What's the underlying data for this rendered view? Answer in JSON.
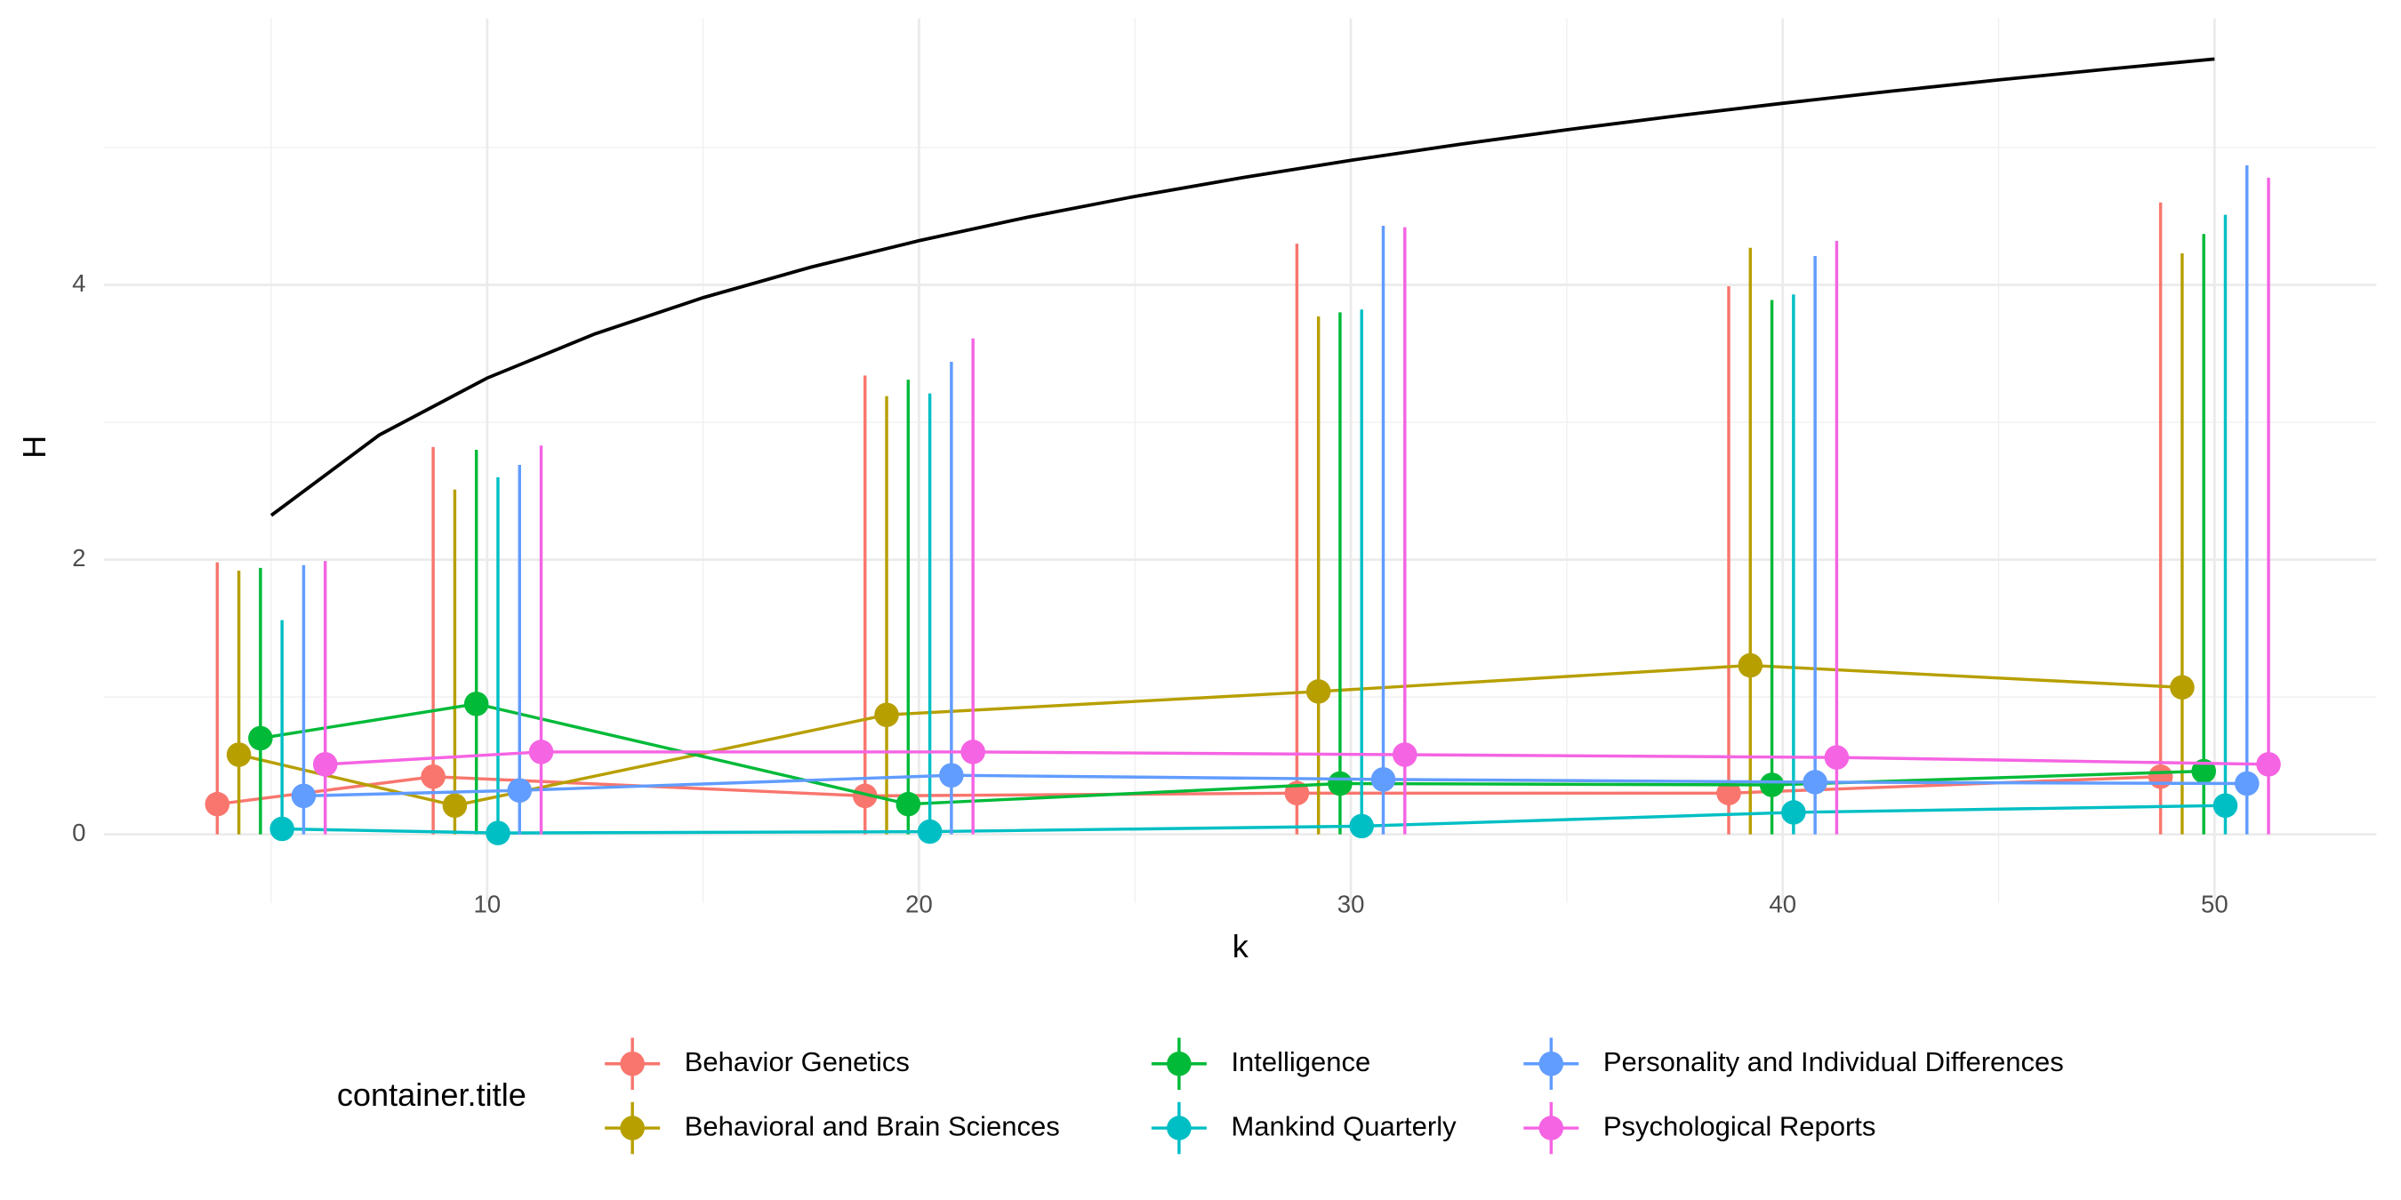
{
  "chart_data": {
    "type": "line",
    "x_label": "k",
    "y_label": "H",
    "legend_title": "container.title",
    "x": [
      5,
      10,
      20,
      30,
      40,
      50
    ],
    "xlim": [
      1.13,
      53.75
    ],
    "ylim": [
      -0.5,
      5.94
    ],
    "xticks": [
      10,
      20,
      30,
      40,
      50
    ],
    "yticks": [
      0,
      2,
      4
    ],
    "xminor": [
      5,
      15,
      25,
      35,
      45
    ],
    "yminor": [
      1,
      3,
      5
    ],
    "grid": true,
    "legend": "bottom",
    "series": [
      {
        "name": "Behavior Genetics",
        "color": "#F8766D",
        "values": [
          0.22,
          0.42,
          0.28,
          0.3,
          0.3,
          0.42
        ],
        "ymin": [
          0,
          0,
          0,
          0,
          0,
          0
        ],
        "ymax": [
          1.98,
          2.82,
          3.34,
          4.3,
          3.99,
          4.6
        ]
      },
      {
        "name": "Behavioral and Brain Sciences",
        "color": "#B79F00",
        "values": [
          0.58,
          0.21,
          0.87,
          1.04,
          1.23,
          1.07
        ],
        "ymin": [
          0,
          0,
          0,
          0,
          0,
          0
        ],
        "ymax": [
          1.92,
          2.51,
          3.19,
          3.77,
          4.27,
          4.23
        ]
      },
      {
        "name": "Intelligence",
        "color": "#00BA38",
        "values": [
          0.7,
          0.95,
          0.22,
          0.37,
          0.36,
          0.46
        ],
        "ymin": [
          0,
          0,
          0,
          0,
          0,
          0
        ],
        "ymax": [
          1.94,
          2.8,
          3.31,
          3.8,
          3.89,
          4.37
        ]
      },
      {
        "name": "Mankind Quarterly",
        "color": "#00BFC4",
        "values": [
          0.04,
          0.01,
          0.02,
          0.06,
          0.16,
          0.21
        ],
        "ymin": [
          0,
          0,
          0,
          0,
          0,
          0
        ],
        "ymax": [
          1.56,
          2.6,
          3.21,
          3.82,
          3.93,
          4.51
        ]
      },
      {
        "name": "Personality and Individual Differences",
        "color": "#619CFF",
        "values": [
          0.28,
          0.32,
          0.43,
          0.4,
          0.38,
          0.37
        ],
        "ymin": [
          0,
          0,
          0,
          0,
          0,
          0
        ],
        "ymax": [
          1.96,
          2.69,
          3.44,
          4.43,
          4.21,
          4.87
        ]
      },
      {
        "name": "Psychological Reports",
        "color": "#F564E3",
        "values": [
          0.51,
          0.6,
          0.6,
          0.58,
          0.56,
          0.51
        ],
        "ymin": [
          0,
          0,
          0,
          0,
          0,
          0
        ],
        "ymax": [
          1.99,
          2.83,
          3.61,
          4.42,
          4.32,
          4.78
        ]
      }
    ],
    "curve": {
      "color": "#000000",
      "x": [
        5,
        7.5,
        10,
        12.5,
        15,
        17.5,
        20,
        22.5,
        25,
        27.5,
        30,
        32.5,
        35,
        37.5,
        40,
        42.5,
        45,
        47.5,
        50
      ],
      "values": [
        2.3219,
        2.9069,
        3.3219,
        3.6439,
        3.9069,
        4.1293,
        4.3219,
        4.4919,
        4.6439,
        4.7814,
        4.9069,
        5.0224,
        5.1293,
        5.2288,
        5.3219,
        5.4094,
        5.4919,
        5.5699,
        5.6439
      ]
    }
  }
}
